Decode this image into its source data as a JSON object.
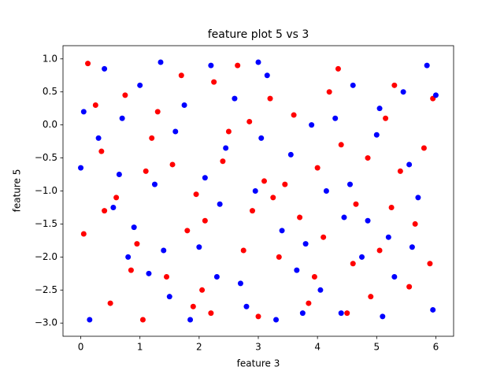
{
  "chart_data": {
    "type": "scatter",
    "title": "feature plot 5 vs 3",
    "xlabel": "feature 3",
    "ylabel": "feature 5",
    "xlim": [
      -0.3,
      6.3
    ],
    "ylim": [
      -3.2,
      1.2
    ],
    "xticks": [
      0,
      1,
      2,
      3,
      4,
      5,
      6
    ],
    "yticks": [
      {
        "value": -3,
        "label": "−3.0"
      },
      {
        "value": -2.5,
        "label": "−2.5"
      },
      {
        "value": -2,
        "label": "−2.0"
      },
      {
        "value": -1.5,
        "label": "−1.5"
      },
      {
        "value": -1,
        "label": "−1.0"
      },
      {
        "value": -0.5,
        "label": "−0.5"
      },
      {
        "value": 0,
        "label": "0.0"
      },
      {
        "value": 0.5,
        "label": "0.5"
      },
      {
        "value": 1,
        "label": "1.0"
      }
    ],
    "series": [
      {
        "color": "#ff0000",
        "x": [
          0.12,
          0.35,
          0.6,
          0.85,
          1.05,
          1.3,
          1.55,
          1.8,
          2.05,
          2.25,
          2.5,
          2.75,
          3.0,
          3.2,
          3.45,
          3.7,
          3.95,
          4.2,
          4.4,
          4.65,
          4.9,
          5.15,
          5.4,
          5.65,
          5.9,
          0.05,
          0.25,
          0.5,
          0.75,
          0.95,
          1.2,
          1.45,
          1.7,
          1.95,
          2.2,
          2.4,
          2.65,
          2.9,
          3.1,
          3.35,
          3.6,
          3.85,
          4.1,
          4.35,
          4.6,
          4.85,
          5.05,
          5.3,
          5.55,
          5.8,
          5.95,
          0.4,
          1.1,
          2.1,
          3.25,
          4.5,
          5.25,
          1.9,
          2.85,
          4.0
        ],
        "values": [
          0.93,
          -0.4,
          -1.1,
          -2.2,
          -2.95,
          0.2,
          -0.6,
          -1.6,
          -2.5,
          0.65,
          -0.1,
          -1.9,
          -2.9,
          0.4,
          -0.9,
          -1.4,
          -2.3,
          0.5,
          -0.3,
          -1.2,
          -2.6,
          0.1,
          -0.7,
          -1.5,
          -2.1,
          -1.65,
          0.3,
          -2.7,
          0.45,
          -1.8,
          -0.2,
          -2.3,
          0.75,
          -1.05,
          -2.85,
          -0.55,
          0.9,
          -1.3,
          -0.85,
          -2.0,
          0.15,
          -2.7,
          -1.7,
          0.85,
          -2.1,
          -0.5,
          -1.9,
          0.6,
          -2.45,
          -0.35,
          0.4,
          -1.3,
          -0.7,
          -1.45,
          -1.1,
          -2.85,
          -1.25,
          -2.75,
          0.05,
          -0.65
        ]
      },
      {
        "color": "#0000ff",
        "x": [
          0.05,
          0.3,
          0.55,
          0.8,
          1.0,
          1.25,
          1.5,
          1.75,
          2.0,
          2.2,
          2.45,
          2.7,
          2.95,
          3.15,
          3.4,
          3.65,
          3.9,
          4.15,
          4.4,
          4.6,
          4.85,
          5.05,
          5.3,
          5.55,
          5.85,
          0.15,
          0.4,
          0.65,
          0.9,
          1.15,
          1.35,
          1.6,
          1.85,
          2.1,
          2.35,
          2.6,
          2.8,
          3.05,
          3.3,
          3.55,
          3.8,
          4.05,
          4.3,
          4.55,
          4.75,
          5.0,
          5.2,
          5.45,
          5.7,
          5.95,
          0.0,
          0.7,
          1.4,
          2.3,
          3.0,
          3.75,
          4.45,
          5.1,
          5.6,
          6.0
        ],
        "values": [
          0.2,
          -0.2,
          -1.25,
          -2.0,
          0.6,
          -0.9,
          -2.6,
          0.3,
          -1.85,
          0.9,
          -0.35,
          -2.4,
          -1.0,
          0.75,
          -1.6,
          -2.2,
          0.0,
          -1.0,
          -2.85,
          0.6,
          -1.45,
          0.25,
          -2.3,
          -0.6,
          0.9,
          -2.95,
          0.85,
          -0.75,
          -1.55,
          -2.25,
          0.95,
          -0.1,
          -2.95,
          -0.8,
          -1.2,
          0.4,
          -2.75,
          -0.2,
          -2.95,
          -0.45,
          -1.8,
          -2.5,
          0.1,
          -0.9,
          -2.0,
          -0.15,
          -1.7,
          0.5,
          -1.1,
          -2.8,
          -0.65,
          0.1,
          -1.9,
          -2.3,
          0.95,
          -2.85,
          -1.4,
          -2.9,
          -1.85,
          0.45
        ]
      }
    ]
  }
}
